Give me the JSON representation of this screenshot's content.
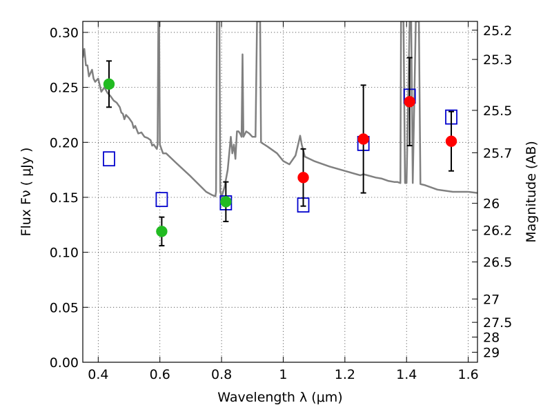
{
  "chart_data": {
    "type": "scatter",
    "xlabel": "Wavelength  λ (μm)",
    "ylabel": "Flux  Fν  ( μJy )",
    "y2label": "Magnitude (AB)",
    "xlim": [
      0.35,
      1.63
    ],
    "ylim": [
      0.0,
      0.31
    ],
    "grid": true,
    "x_ticks": [
      {
        "value": 0.4,
        "label": "0.4"
      },
      {
        "value": 0.6,
        "label": "0.6"
      },
      {
        "value": 0.8,
        "label": "0.8"
      },
      {
        "value": 1.0,
        "label": "1"
      },
      {
        "value": 1.2,
        "label": "1.2"
      },
      {
        "value": 1.4,
        "label": "1.4"
      },
      {
        "value": 1.6,
        "label": "1.6"
      }
    ],
    "y_ticks": [
      {
        "value": 0.0,
        "label": "0.00"
      },
      {
        "value": 0.05,
        "label": "0.05"
      },
      {
        "value": 0.1,
        "label": "0.10"
      },
      {
        "value": 0.15,
        "label": "0.15"
      },
      {
        "value": 0.2,
        "label": "0.20"
      },
      {
        "value": 0.25,
        "label": "0.25"
      },
      {
        "value": 0.3,
        "label": "0.30"
      }
    ],
    "y2_ticks": [
      {
        "value": 25.2,
        "label": "25.2"
      },
      {
        "value": 25.3,
        "label": "25.3"
      },
      {
        "value": 25.5,
        "label": "25.5"
      },
      {
        "value": 25.7,
        "label": "25.7"
      },
      {
        "value": 26.0,
        "label": "26"
      },
      {
        "value": 26.2,
        "label": "26.2"
      },
      {
        "value": 26.5,
        "label": "26.5"
      },
      {
        "value": 27.0,
        "label": "27"
      },
      {
        "value": 27.5,
        "label": "27.5"
      },
      {
        "value": 28.0,
        "label": "28"
      },
      {
        "value": 29.0,
        "label": "29"
      }
    ],
    "series": [
      {
        "marker": "circle",
        "color": "#22bb22",
        "points": [
          {
            "x": 0.435,
            "y": 0.253,
            "err": 0.021
          },
          {
            "x": 0.606,
            "y": 0.119,
            "err": 0.013
          },
          {
            "x": 0.814,
            "y": 0.146,
            "err": 0.018
          }
        ]
      },
      {
        "marker": "circle",
        "color": "#ff0000",
        "points": [
          {
            "x": 1.065,
            "y": 0.168,
            "err": 0.026
          },
          {
            "x": 1.26,
            "y": 0.203,
            "err": 0.049
          },
          {
            "x": 1.41,
            "y": 0.237,
            "err": 0.04
          },
          {
            "x": 1.545,
            "y": 0.201,
            "err": 0.027
          }
        ]
      },
      {
        "marker": "open-square",
        "color": "#0000cc",
        "points": [
          {
            "x": 0.435,
            "y": 0.185
          },
          {
            "x": 0.606,
            "y": 0.148
          },
          {
            "x": 0.814,
            "y": 0.145
          },
          {
            "x": 1.065,
            "y": 0.143
          },
          {
            "x": 1.26,
            "y": 0.199
          },
          {
            "x": 1.41,
            "y": 0.242
          },
          {
            "x": 1.545,
            "y": 0.223
          }
        ]
      },
      {
        "type": "line",
        "color": "#808080",
        "points": [
          [
            0.35,
            0.277
          ],
          [
            0.355,
            0.285
          ],
          [
            0.36,
            0.27
          ],
          [
            0.365,
            0.27
          ],
          [
            0.37,
            0.26
          ],
          [
            0.38,
            0.266
          ],
          [
            0.385,
            0.258
          ],
          [
            0.39,
            0.255
          ],
          [
            0.4,
            0.258
          ],
          [
            0.41,
            0.246
          ],
          [
            0.42,
            0.25
          ],
          [
            0.43,
            0.245
          ],
          [
            0.44,
            0.242
          ],
          [
            0.45,
            0.238
          ],
          [
            0.46,
            0.236
          ],
          [
            0.47,
            0.232
          ],
          [
            0.475,
            0.227
          ],
          [
            0.48,
            0.226
          ],
          [
            0.485,
            0.221
          ],
          [
            0.49,
            0.225
          ],
          [
            0.5,
            0.222
          ],
          [
            0.51,
            0.218
          ],
          [
            0.515,
            0.213
          ],
          [
            0.52,
            0.215
          ],
          [
            0.53,
            0.208
          ],
          [
            0.54,
            0.209
          ],
          [
            0.55,
            0.205
          ],
          [
            0.56,
            0.204
          ],
          [
            0.57,
            0.202
          ],
          [
            0.575,
            0.197
          ],
          [
            0.58,
            0.198
          ],
          [
            0.59,
            0.194
          ],
          [
            0.5925,
            0.198
          ],
          [
            0.595,
            0.31
          ],
          [
            0.5975,
            0.31
          ],
          [
            0.6,
            0.198
          ],
          [
            0.61,
            0.19
          ],
          [
            0.62,
            0.19
          ],
          [
            0.65,
            0.182
          ],
          [
            0.7,
            0.169
          ],
          [
            0.75,
            0.155
          ],
          [
            0.77,
            0.152
          ],
          [
            0.78,
            0.151
          ],
          [
            0.782,
            0.155
          ],
          [
            0.785,
            0.31
          ],
          [
            0.793,
            0.31
          ],
          [
            0.796,
            0.155
          ],
          [
            0.8,
            0.15
          ],
          [
            0.81,
            0.16
          ],
          [
            0.82,
            0.175
          ],
          [
            0.83,
            0.205
          ],
          [
            0.835,
            0.19
          ],
          [
            0.84,
            0.198
          ],
          [
            0.845,
            0.185
          ],
          [
            0.85,
            0.21
          ],
          [
            0.855,
            0.21
          ],
          [
            0.86,
            0.208
          ],
          [
            0.865,
            0.205
          ],
          [
            0.868,
            0.28
          ],
          [
            0.871,
            0.205
          ],
          [
            0.88,
            0.21
          ],
          [
            0.89,
            0.208
          ],
          [
            0.9,
            0.205
          ],
          [
            0.91,
            0.205
          ],
          [
            0.915,
            0.31
          ],
          [
            0.925,
            0.31
          ],
          [
            0.928,
            0.2
          ],
          [
            0.95,
            0.196
          ],
          [
            0.98,
            0.19
          ],
          [
            1.0,
            0.183
          ],
          [
            1.02,
            0.18
          ],
          [
            1.04,
            0.188
          ],
          [
            1.05,
            0.2
          ],
          [
            1.055,
            0.206
          ],
          [
            1.06,
            0.198
          ],
          [
            1.07,
            0.187
          ],
          [
            1.1,
            0.183
          ],
          [
            1.15,
            0.178
          ],
          [
            1.2,
            0.174
          ],
          [
            1.25,
            0.17
          ],
          [
            1.26,
            0.171
          ],
          [
            1.3,
            0.168
          ],
          [
            1.32,
            0.167
          ],
          [
            1.34,
            0.165
          ],
          [
            1.36,
            0.164
          ],
          [
            1.37,
            0.164
          ],
          [
            1.38,
            0.163
          ],
          [
            1.382,
            0.31
          ],
          [
            1.39,
            0.31
          ],
          [
            1.395,
            0.163
          ],
          [
            1.4,
            0.163
          ],
          [
            1.41,
            0.31
          ],
          [
            1.415,
            0.31
          ],
          [
            1.42,
            0.163
          ],
          [
            1.43,
            0.31
          ],
          [
            1.44,
            0.31
          ],
          [
            1.445,
            0.162
          ],
          [
            1.46,
            0.161
          ],
          [
            1.5,
            0.157
          ],
          [
            1.55,
            0.155
          ],
          [
            1.6,
            0.155
          ],
          [
            1.63,
            0.154
          ]
        ]
      }
    ]
  }
}
